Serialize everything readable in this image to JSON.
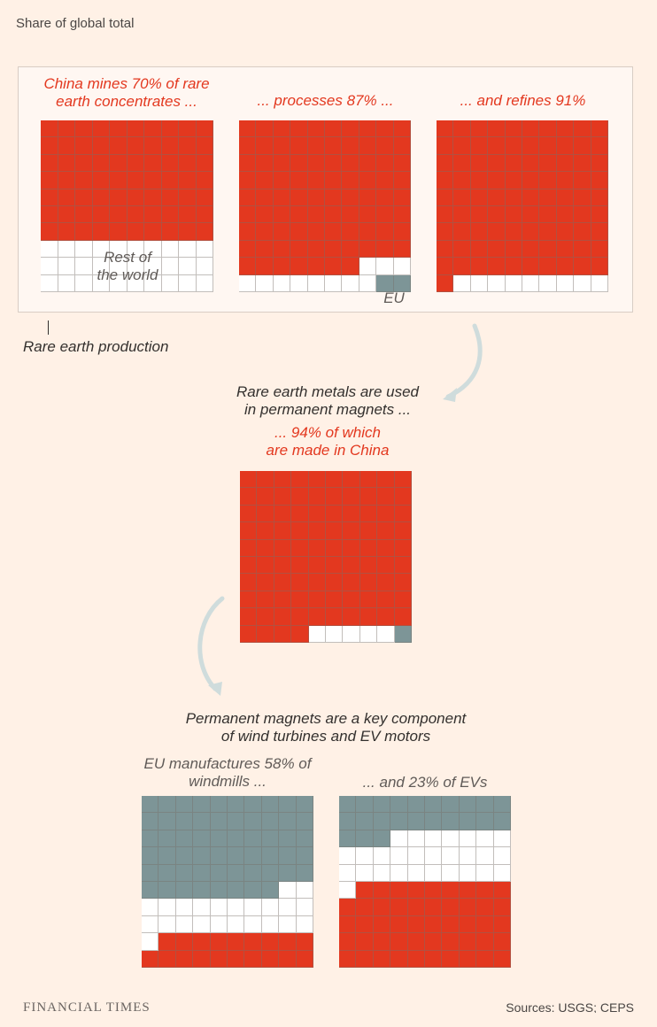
{
  "header": {
    "subtitle": "Share of global total"
  },
  "annotations": {
    "rest_of_world": "Rest of\nthe world",
    "eu": "EU",
    "rare_earth_production": "Rare earth production",
    "used_in_magnets": "Rare earth metals are used\nin permanent magnets ...",
    "china_magnets": "... 94% of which\nare made in China",
    "component_note": "Permanent magnets are a key component\nof wind turbines and EV motors"
  },
  "colors": {
    "china": "#e3381f",
    "rest": "#ffffff",
    "eu": "#7d9597",
    "background": "#fff1e6"
  },
  "chart_data": [
    {
      "type": "waffle",
      "title": "China mines 70% of rare earth concentrates ...",
      "cells": {
        "china": 70,
        "rest": 30,
        "eu": 0
      }
    },
    {
      "type": "waffle",
      "title": "... processes 87% ...",
      "cells": {
        "china": 87,
        "rest": 11,
        "eu": 2
      }
    },
    {
      "type": "waffle",
      "title": "... and refines 91%",
      "cells": {
        "china": 91,
        "rest": 9,
        "eu": 0
      }
    },
    {
      "type": "waffle",
      "title": "",
      "cells": {
        "china": 94,
        "rest": 5,
        "eu": 1
      }
    },
    {
      "type": "waffle",
      "title": "EU manufactures 58% of windmills ...",
      "cells": {
        "china": 19,
        "rest": 23,
        "eu": 58
      }
    },
    {
      "type": "waffle",
      "title": "... and 23% of EVs",
      "cells": {
        "china": 49,
        "rest": 28,
        "eu": 23
      }
    }
  ],
  "footer": {
    "logo": "FINANCIAL TIMES",
    "source": "Sources: USGS; CEPS"
  }
}
